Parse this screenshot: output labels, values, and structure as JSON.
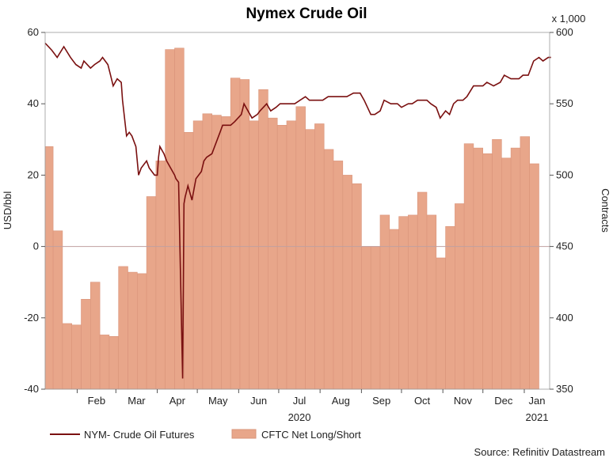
{
  "chart_data": {
    "type": "bar+line",
    "title": "Nymex Crude Oil",
    "ylabel_left": "USD/bbl",
    "ylabel_right": "Contracts",
    "right_unit_note": "x 1,000",
    "ylim_left": [
      -40,
      60
    ],
    "ylim_right": [
      350,
      600
    ],
    "yticks_left": [
      "60",
      "40",
      "20",
      "0",
      "-20",
      "-40"
    ],
    "yticks_right": [
      "600",
      "550",
      "500",
      "450",
      "400",
      "350"
    ],
    "month_labels": [
      "Feb",
      "Mar",
      "Apr",
      "May",
      "Jun",
      "Jul",
      "Aug",
      "Sep",
      "Oct",
      "Nov",
      "Dec",
      "Jan"
    ],
    "year_labels": [
      {
        "text": "2020",
        "month": "Jul"
      },
      {
        "text": "2021",
        "month": "Jan"
      }
    ],
    "x_range": [
      "2020-01-08",
      "2021-01-20"
    ],
    "month_starts": [
      "2020-02-01",
      "2020-03-01",
      "2020-04-01",
      "2020-05-01",
      "2020-06-01",
      "2020-07-01",
      "2020-08-01",
      "2020-09-01",
      "2020-10-01",
      "2020-11-01",
      "2020-12-01",
      "2021-01-01"
    ],
    "zero_line": 0,
    "legend_position": "bottom-left",
    "series": [
      {
        "name": "CFTC Net Long/Short",
        "type": "bar",
        "unit": "contracts (x 1,000)",
        "color": "#e8a68a",
        "points": [
          [
            "2020-01-07",
            520
          ],
          [
            "2020-01-14",
            461
          ],
          [
            "2020-01-21",
            396
          ],
          [
            "2020-01-28",
            395
          ],
          [
            "2020-02-04",
            413
          ],
          [
            "2020-02-11",
            425
          ],
          [
            "2020-02-18",
            388
          ],
          [
            "2020-02-25",
            387
          ],
          [
            "2020-03-03",
            436
          ],
          [
            "2020-03-10",
            432
          ],
          [
            "2020-03-17",
            431
          ],
          [
            "2020-03-24",
            485
          ],
          [
            "2020-03-31",
            510
          ],
          [
            "2020-04-07",
            588
          ],
          [
            "2020-04-14",
            589
          ],
          [
            "2020-04-21",
            530
          ],
          [
            "2020-04-28",
            538
          ],
          [
            "2020-05-05",
            543
          ],
          [
            "2020-05-12",
            542
          ],
          [
            "2020-05-19",
            541
          ],
          [
            "2020-05-26",
            568
          ],
          [
            "2020-06-02",
            567
          ],
          [
            "2020-06-09",
            538
          ],
          [
            "2020-06-16",
            560
          ],
          [
            "2020-06-23",
            540
          ],
          [
            "2020-06-30",
            535
          ],
          [
            "2020-07-07",
            538
          ],
          [
            "2020-07-14",
            548
          ],
          [
            "2020-07-21",
            532
          ],
          [
            "2020-07-28",
            536
          ],
          [
            "2020-08-04",
            518
          ],
          [
            "2020-08-11",
            510
          ],
          [
            "2020-08-18",
            500
          ],
          [
            "2020-08-25",
            494
          ],
          [
            "2020-09-01",
            450
          ],
          [
            "2020-09-08",
            450
          ],
          [
            "2020-09-15",
            472
          ],
          [
            "2020-09-22",
            462
          ],
          [
            "2020-09-29",
            471
          ],
          [
            "2020-10-06",
            472
          ],
          [
            "2020-10-13",
            488
          ],
          [
            "2020-10-20",
            472
          ],
          [
            "2020-10-27",
            442
          ],
          [
            "2020-11-03",
            464
          ],
          [
            "2020-11-10",
            480
          ],
          [
            "2020-11-17",
            522
          ],
          [
            "2020-11-24",
            519
          ],
          [
            "2020-12-01",
            515
          ],
          [
            "2020-12-08",
            525
          ],
          [
            "2020-12-15",
            512
          ],
          [
            "2020-12-22",
            519
          ],
          [
            "2020-12-29",
            527
          ],
          [
            "2021-01-05",
            508
          ]
        ]
      },
      {
        "name": "NYM- Crude Oil Futures",
        "type": "line",
        "unit": "USD/bbl",
        "color": "#7a1010",
        "points": [
          [
            "2020-01-08",
            57
          ],
          [
            "2020-01-13",
            55
          ],
          [
            "2020-01-17",
            53
          ],
          [
            "2020-01-22",
            56
          ],
          [
            "2020-01-27",
            53
          ],
          [
            "2020-01-31",
            51
          ],
          [
            "2020-02-04",
            50
          ],
          [
            "2020-02-06",
            52
          ],
          [
            "2020-02-11",
            50
          ],
          [
            "2020-02-14",
            51
          ],
          [
            "2020-02-18",
            52
          ],
          [
            "2020-02-20",
            53
          ],
          [
            "2020-02-24",
            51
          ],
          [
            "2020-02-26",
            48
          ],
          [
            "2020-02-28",
            45
          ],
          [
            "2020-03-02",
            47
          ],
          [
            "2020-03-05",
            46
          ],
          [
            "2020-03-06",
            41
          ],
          [
            "2020-03-09",
            31
          ],
          [
            "2020-03-11",
            32
          ],
          [
            "2020-03-13",
            31
          ],
          [
            "2020-03-16",
            28
          ],
          [
            "2020-03-18",
            20
          ],
          [
            "2020-03-20",
            22
          ],
          [
            "2020-03-24",
            24
          ],
          [
            "2020-03-26",
            22
          ],
          [
            "2020-03-30",
            20
          ],
          [
            "2020-04-01",
            20
          ],
          [
            "2020-04-02",
            25
          ],
          [
            "2020-04-03",
            28
          ],
          [
            "2020-04-06",
            26
          ],
          [
            "2020-04-08",
            24
          ],
          [
            "2020-04-14",
            20
          ],
          [
            "2020-04-15",
            19
          ],
          [
            "2020-04-17",
            18
          ],
          [
            "2020-04-20",
            -37
          ],
          [
            "2020-04-21",
            12
          ],
          [
            "2020-04-22",
            14
          ],
          [
            "2020-04-24",
            17
          ],
          [
            "2020-04-27",
            13
          ],
          [
            "2020-04-30",
            19
          ],
          [
            "2020-05-04",
            21
          ],
          [
            "2020-05-06",
            24
          ],
          [
            "2020-05-08",
            25
          ],
          [
            "2020-05-12",
            26
          ],
          [
            "2020-05-14",
            28
          ],
          [
            "2020-05-18",
            32
          ],
          [
            "2020-05-20",
            34
          ],
          [
            "2020-05-26",
            34
          ],
          [
            "2020-05-29",
            35
          ],
          [
            "2020-06-03",
            37
          ],
          [
            "2020-06-05",
            40
          ],
          [
            "2020-06-08",
            38
          ],
          [
            "2020-06-11",
            36
          ],
          [
            "2020-06-15",
            37
          ],
          [
            "2020-06-17",
            38
          ],
          [
            "2020-06-22",
            40
          ],
          [
            "2020-06-25",
            38
          ],
          [
            "2020-06-29",
            39
          ],
          [
            "2020-07-02",
            40
          ],
          [
            "2020-07-07",
            40
          ],
          [
            "2020-07-13",
            40
          ],
          [
            "2020-07-21",
            42
          ],
          [
            "2020-07-24",
            41
          ],
          [
            "2020-07-29",
            41
          ],
          [
            "2020-08-03",
            41
          ],
          [
            "2020-08-07",
            42
          ],
          [
            "2020-08-12",
            42
          ],
          [
            "2020-08-17",
            42
          ],
          [
            "2020-08-21",
            42
          ],
          [
            "2020-08-26",
            43
          ],
          [
            "2020-08-31",
            43
          ],
          [
            "2020-09-03",
            41
          ],
          [
            "2020-09-08",
            37
          ],
          [
            "2020-09-11",
            37
          ],
          [
            "2020-09-15",
            38
          ],
          [
            "2020-09-18",
            41
          ],
          [
            "2020-09-23",
            40
          ],
          [
            "2020-09-28",
            40
          ],
          [
            "2020-10-01",
            39
          ],
          [
            "2020-10-06",
            40
          ],
          [
            "2020-10-09",
            40
          ],
          [
            "2020-10-13",
            41
          ],
          [
            "2020-10-16",
            41
          ],
          [
            "2020-10-20",
            41
          ],
          [
            "2020-10-23",
            40
          ],
          [
            "2020-10-27",
            39
          ],
          [
            "2020-10-30",
            36
          ],
          [
            "2020-11-03",
            38
          ],
          [
            "2020-11-06",
            37
          ],
          [
            "2020-11-09",
            40
          ],
          [
            "2020-11-12",
            41
          ],
          [
            "2020-11-16",
            41
          ],
          [
            "2020-11-19",
            42
          ],
          [
            "2020-11-24",
            45
          ],
          [
            "2020-11-27",
            45
          ],
          [
            "2020-12-01",
            45
          ],
          [
            "2020-12-04",
            46
          ],
          [
            "2020-12-09",
            45
          ],
          [
            "2020-12-14",
            46
          ],
          [
            "2020-12-17",
            48
          ],
          [
            "2020-12-22",
            47
          ],
          [
            "2020-12-28",
            47
          ],
          [
            "2020-12-31",
            48
          ],
          [
            "2021-01-04",
            48
          ],
          [
            "2021-01-06",
            50
          ],
          [
            "2021-01-08",
            52
          ],
          [
            "2021-01-12",
            53
          ],
          [
            "2021-01-15",
            52
          ],
          [
            "2021-01-19",
            53
          ],
          [
            "2021-01-21",
            53
          ]
        ]
      }
    ],
    "source": "Source: Refinitiv Datastream"
  },
  "colors": {
    "bar_fill": "#e8a68a",
    "bar_stroke": "#d9947a",
    "line": "#7a1010",
    "zero_line": "#c0a0a0",
    "axis": "#555555"
  }
}
